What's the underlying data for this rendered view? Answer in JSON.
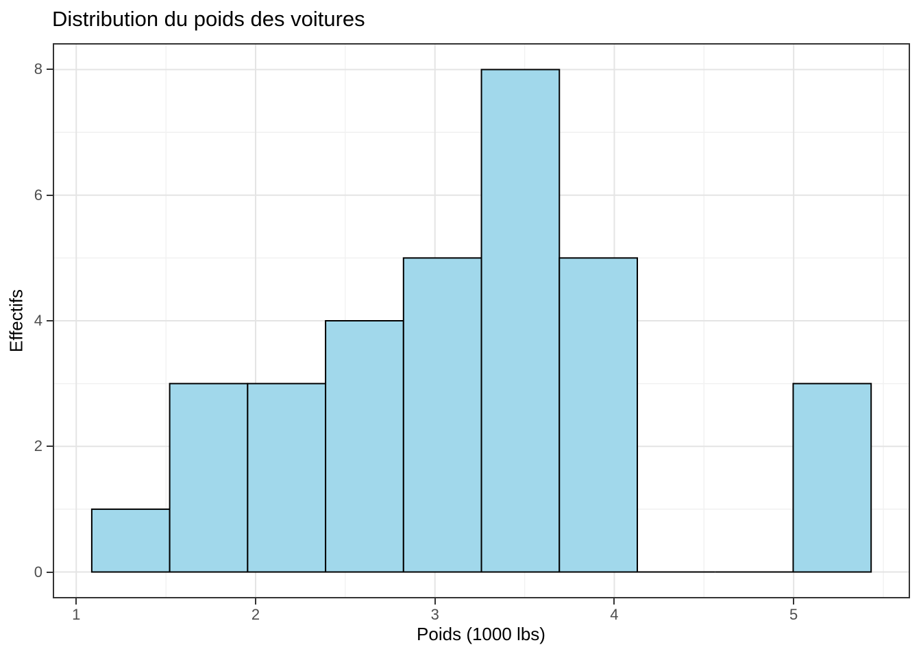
{
  "chart_data": {
    "type": "bar",
    "subtype": "histogram",
    "title": "Distribution du poids des voitures",
    "xlabel": "Poids (1000 lbs)",
    "ylabel": "Effectifs",
    "bin_edges": [
      1.0864,
      1.5209,
      1.9555,
      2.3901,
      2.8246,
      3.2592,
      3.6937,
      4.1283,
      4.5629,
      4.9974,
      5.432
    ],
    "counts": [
      1,
      3,
      3,
      4,
      5,
      8,
      5,
      0,
      0,
      3
    ],
    "x_ticks": [
      1,
      2,
      3,
      4,
      5
    ],
    "y_ticks": [
      0,
      2,
      4,
      6,
      8
    ],
    "x_minor_ticks": [
      1.5,
      2.5,
      3.5,
      4.5,
      5.5
    ],
    "y_minor_ticks": [
      1,
      3,
      5,
      7
    ],
    "xlim": [
      0.869,
      5.649
    ],
    "ylim": [
      -0.42,
      8.42
    ],
    "grid": true,
    "legend": false,
    "colors": {
      "bar_fill": "#A1D8EB",
      "bar_stroke": "#000000",
      "grid_major": "#E4E4E4",
      "grid_minor": "#F1F1F1",
      "panel_border": "#333333",
      "tick_mark": "#333333",
      "tick_label": "#4D4D4D",
      "title_text": "#000000",
      "background": "#FFFFFF"
    }
  }
}
